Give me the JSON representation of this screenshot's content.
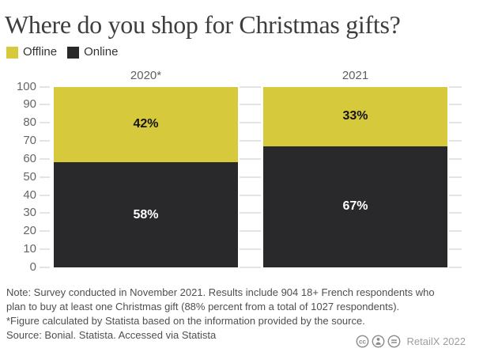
{
  "title": "Where do you shop for Christmas gifts?",
  "legend": [
    {
      "label": "Offline",
      "color": "#d7c93c"
    },
    {
      "label": "Online",
      "color": "#29292b"
    }
  ],
  "chart_data": {
    "type": "bar",
    "stacked": true,
    "orientation": "vertical",
    "title": "Where do you shop for Christmas gifts?",
    "categories": [
      "2020*",
      "2021"
    ],
    "series": [
      {
        "name": "Offline",
        "color": "#d7c93c",
        "values": [
          42,
          33
        ],
        "labels": [
          "42%",
          "33%"
        ]
      },
      {
        "name": "Online",
        "color": "#29292b",
        "values": [
          58,
          67
        ],
        "labels": [
          "58%",
          "67%"
        ]
      }
    ],
    "xlabel": "",
    "ylabel": "",
    "ylim": [
      0,
      100
    ],
    "yticks": [
      0,
      10,
      20,
      30,
      40,
      50,
      60,
      70,
      80,
      90,
      100
    ],
    "grid": true,
    "legend_position": "top-left",
    "value_label_colors": {
      "Offline": "#141414",
      "Online": "#ffffff"
    }
  },
  "notes": {
    "lines": [
      "Note: Survey conducted in November 2021. Results include 904 18+ French respondents who",
      "plan to buy at least one Christmas gift (88% percent from a total of 1027 respondents).",
      "*Figure calculated by Statista based on the information provided by the source.",
      "Source: Bonial. Statista. Accessed via Statista"
    ]
  },
  "attribution": {
    "icons": [
      "cc-icon",
      "cc-attribution-icon",
      "cc-no-derivatives-icon"
    ],
    "label": "RetailX 2022"
  }
}
